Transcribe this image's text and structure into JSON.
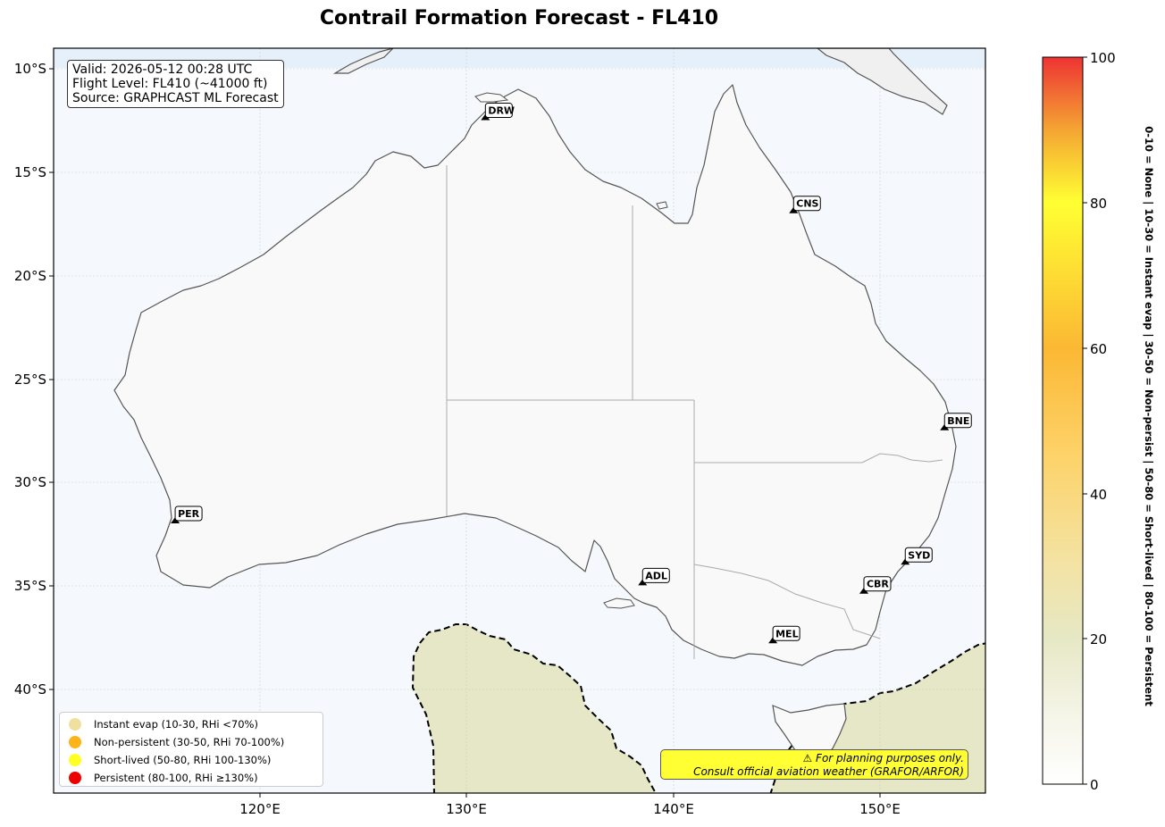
{
  "title": "Contrail Formation Forecast - FL410",
  "info": {
    "valid": "Valid: 2026-05-12 00:28 UTC",
    "level": "Flight Level: FL410 (~41000 ft)",
    "source": "Source: GRAPHCAST ML Forecast"
  },
  "lat_ticks": [
    "10°S",
    "15°S",
    "20°S",
    "25°S",
    "30°S",
    "35°S",
    "40°S"
  ],
  "lon_ticks": [
    "120°E",
    "130°E",
    "140°E",
    "150°E"
  ],
  "airports": [
    {
      "code": "DRW",
      "lon": 130.9,
      "lat": -12.4
    },
    {
      "code": "CNS",
      "lon": 145.8,
      "lat": -16.9
    },
    {
      "code": "BNE",
      "lon": 153.1,
      "lat": -27.4
    },
    {
      "code": "PER",
      "lon": 115.9,
      "lat": -31.9
    },
    {
      "code": "SYD",
      "lon": 151.2,
      "lat": -33.9
    },
    {
      "code": "CBR",
      "lon": 149.2,
      "lat": -35.3
    },
    {
      "code": "ADL",
      "lon": 138.5,
      "lat": -34.9
    },
    {
      "code": "MEL",
      "lon": 144.8,
      "lat": -37.7
    }
  ],
  "legend": [
    {
      "label": "Instant evap (10-30, RHi <70%)",
      "color": "#f0e0a0"
    },
    {
      "label": "Non-persistent (30-50, RHi 70-100%)",
      "color": "#ffb31a"
    },
    {
      "label": "Short-lived (50-80, RHi 100-130%)",
      "color": "#ffff22"
    },
    {
      "label": "Persistent (80-100, RHi ≥130%)",
      "color": "#ee0000"
    }
  ],
  "disclaimer": {
    "line1": "⚠ For planning purposes only.",
    "line2": "Consult official aviation weather (GRAFOR/ARFOR)"
  },
  "colorbar": {
    "ticks": [
      "0",
      "20",
      "40",
      "60",
      "80",
      "100"
    ],
    "label": "0-10 = None  |  10-30 = Instant evap  |  30-50 = Non-persist  |  50-80 = Short-lived  |  80-100 = Persistent"
  },
  "colors": {
    "ocean": "#f5f9fd",
    "land": "#f9f9f9",
    "contrail_zone": "#e5e7c6",
    "coastline": "#555555",
    "border": "#aaaaaa"
  }
}
